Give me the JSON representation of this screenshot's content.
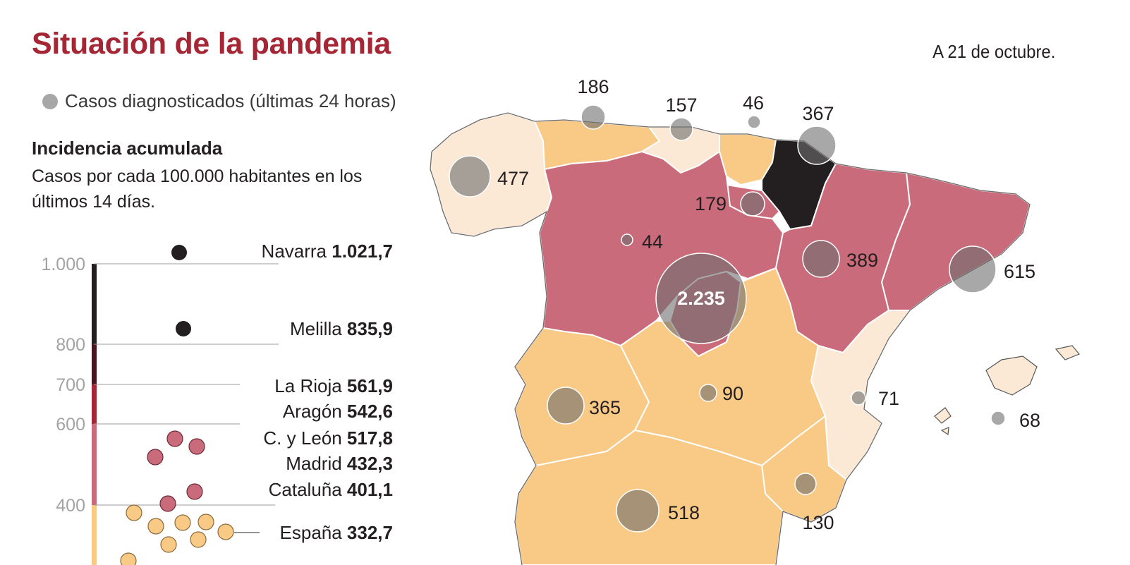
{
  "header": {
    "title": "Situación de la pandemia",
    "date": "A 21 de octubre."
  },
  "legend": {
    "cases_label": "Casos diagnosticados (últimas 24 horas)"
  },
  "incidence": {
    "title": "Incidencia acumulada",
    "subtitle": "Casos por cada 100.000 habitantes en los últimos 14 días."
  },
  "chart_data": {
    "type": "scatter",
    "title": "Incidencia acumulada",
    "ylabel": "",
    "y_ticks": [
      "1.000",
      "800",
      "700",
      "600",
      "400"
    ],
    "color_bands": [
      {
        "from": 800,
        "to": 1000,
        "color": "#231f20"
      },
      {
        "from": 700,
        "to": 800,
        "color": "#4a1520"
      },
      {
        "from": 600,
        "to": 700,
        "color": "#a52634"
      },
      {
        "from": 400,
        "to": 600,
        "color": "#c96b7b"
      },
      {
        "from": 0,
        "to": 400,
        "color": "#f9c986"
      }
    ],
    "labeled_points": [
      {
        "name": "Navarra",
        "value": "1.021,7"
      },
      {
        "name": "Melilla",
        "value": "835,9"
      },
      {
        "name": "La Rioja",
        "value": "561,9"
      },
      {
        "name": "Aragón",
        "value": "542,6"
      },
      {
        "name": "C. y León",
        "value": "517,8"
      },
      {
        "name": "Madrid",
        "value": "432,3"
      },
      {
        "name": "Cataluña",
        "value": "401,1"
      },
      {
        "name": "España",
        "value": "332,7"
      }
    ]
  },
  "map": {
    "colors": {
      "lightest": "#fbe9d6",
      "orange": "#f9c986",
      "pink": "#c96b7b",
      "black": "#231f20",
      "bubble": "#7a7a7a"
    },
    "case_labels": [
      {
        "region": "Galicia",
        "value": "477"
      },
      {
        "region": "Asturias",
        "value": "186"
      },
      {
        "region": "Cantabria",
        "value": "157"
      },
      {
        "region": "País Vasco",
        "value": "46"
      },
      {
        "region": "Navarra",
        "value": "367"
      },
      {
        "region": "La Rioja",
        "value": "179"
      },
      {
        "region": "Castilla y León",
        "value": "44"
      },
      {
        "region": "Madrid",
        "value": "2.235"
      },
      {
        "region": "Aragón",
        "value": "389"
      },
      {
        "region": "Cataluña",
        "value": "615"
      },
      {
        "region": "Extremadura",
        "value": "365"
      },
      {
        "region": "Castilla-La Mancha",
        "value": "90"
      },
      {
        "region": "C. Valenciana",
        "value": "71"
      },
      {
        "region": "Baleares",
        "value": "68"
      },
      {
        "region": "Murcia",
        "value": "130"
      },
      {
        "region": "Andalucía",
        "value": "518"
      }
    ]
  }
}
